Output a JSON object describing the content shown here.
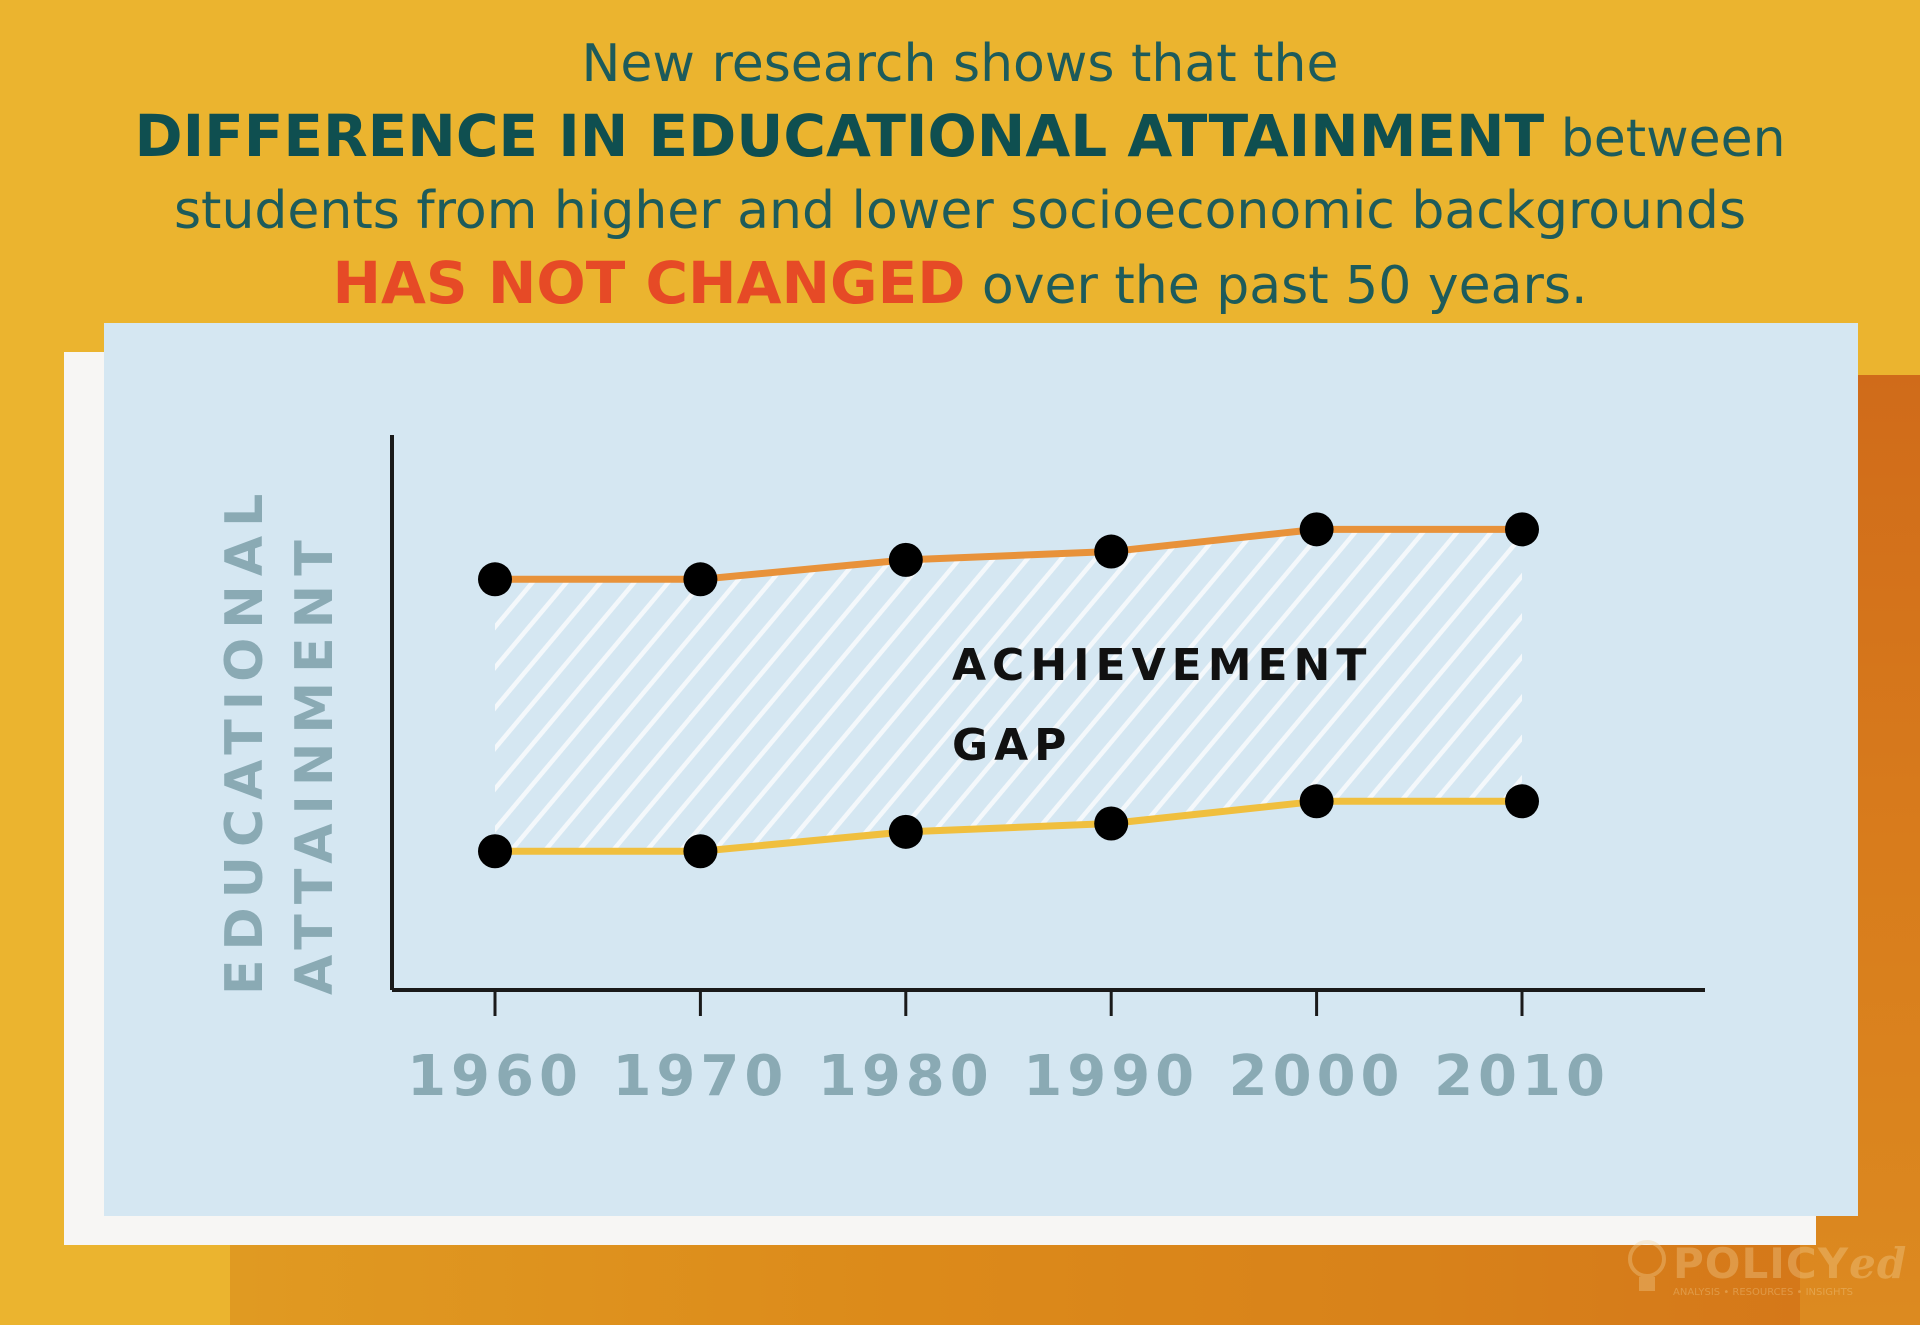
{
  "headline": {
    "line1": "New research shows that the",
    "line2_bold": "DIFFERENCE IN EDUCATIONAL ATTAINMENT",
    "line2_rest": " between",
    "line3": "students from higher and lower socioeconomic backgrounds",
    "line4_bold": "HAS NOT CHANGED",
    "line4_rest": " over the past 50 years."
  },
  "colors": {
    "background": "#ebb42f",
    "card": "#d5e7f2",
    "upper_line": "#e8923a",
    "lower_line": "#f0bf3e",
    "points": "#000000",
    "axis_label": "#8aaab4"
  },
  "chart_data": {
    "type": "line",
    "title": "",
    "xlabel": "",
    "ylabel": "EDUCATIONAL ATTAINMENT",
    "ylabel_lines": [
      "EDUCATIONAL",
      "ATTAINMENT"
    ],
    "x": [
      1960,
      1970,
      1980,
      1990,
      2000,
      2010
    ],
    "x_tick_labels": [
      "1960",
      "1970",
      "1980",
      "1990",
      "2000",
      "2010"
    ],
    "xlim": [
      1955,
      2019
    ],
    "ylim": [
      0,
      100
    ],
    "y_ticks_shown": false,
    "grid": false,
    "legend": "none",
    "series": [
      {
        "values": [
          74,
          74,
          77.5,
          79,
          83,
          83
        ],
        "color": "#e8923a"
      },
      {
        "values": [
          25,
          25,
          28.5,
          30,
          34,
          34
        ],
        "color": "#f0bf3e"
      }
    ],
    "shaded_region": {
      "between_series": [
        0,
        1
      ],
      "pattern": "diagonal hatch"
    },
    "annotation_lines": [
      "ACHIEVEMENT",
      "GAP"
    ]
  },
  "logo": {
    "text_main": "POLICY",
    "text_em": "ed",
    "text_sub": "ANALYSIS • RESOURCES • INSIGHTS"
  }
}
